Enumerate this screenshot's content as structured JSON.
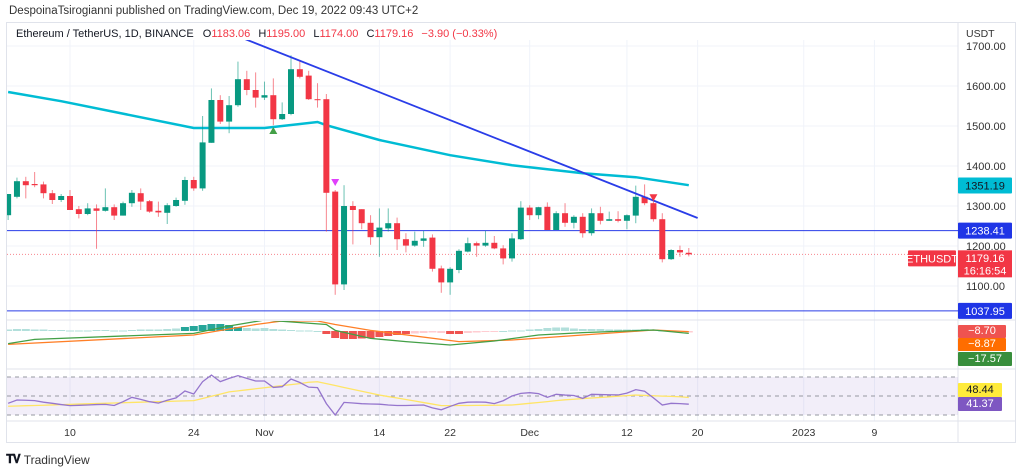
{
  "publisher_line": "DespoinaTsirogianni published on TradingView.com, Dec 19, 2022 09:43 UTC+2",
  "legend": {
    "symbol": "Ethereum / TetherUS, 1D, BINANCE",
    "o_label": "O",
    "o": "1183.06",
    "h_label": "H",
    "h": "1195.00",
    "l_label": "L",
    "l": "1174.00",
    "c_label": "C",
    "c": "1179.16",
    "change": "−3.90 (−0.33%)"
  },
  "footer": {
    "logo_mark": "TV",
    "logo_text": "TradingView"
  },
  "colors": {
    "up": "#089981",
    "down": "#f23645",
    "ma": "#00bcd4",
    "trendline": "#2a3de8",
    "hline": "#2a3de8",
    "macd": "#43a047",
    "signal": "#ff7f27",
    "rsi": "#9575cd",
    "rsi_ma": "#ffe566"
  },
  "chart_data": {
    "type": "candlestick",
    "currency": "USDT",
    "ylim": [
      1020,
      1760
    ],
    "y_ticks": [
      "1700.00",
      "1600.00",
      "1500.00",
      "1400.00",
      "1300.00",
      "1200.00",
      "1100.00"
    ],
    "x_ticks": [
      {
        "label": "10",
        "date": "2022-10-10"
      },
      {
        "label": "24",
        "date": "2022-10-24"
      },
      {
        "label": "Nov",
        "date": "2022-11-01"
      },
      {
        "label": "14",
        "date": "2022-11-14"
      },
      {
        "label": "22",
        "date": "2022-11-22"
      },
      {
        "label": "Dec",
        "date": "2022-12-01"
      },
      {
        "label": "12",
        "date": "2022-12-12"
      },
      {
        "label": "20",
        "date": "2022-12-20"
      },
      {
        "label": "2023",
        "date": "2023-01-01"
      },
      {
        "label": "9",
        "date": "2023-01-09"
      }
    ],
    "candles_columns": [
      "date",
      "open",
      "high",
      "low",
      "close"
    ],
    "candles": [
      [
        "2022-10-03",
        1277,
        1330,
        1265,
        1330
      ],
      [
        "2022-10-04",
        1323,
        1371,
        1319,
        1362
      ],
      [
        "2022-10-05",
        1362,
        1373,
        1319,
        1352
      ],
      [
        "2022-10-06",
        1355,
        1385,
        1347,
        1352
      ],
      [
        "2022-10-07",
        1354,
        1361,
        1319,
        1332
      ],
      [
        "2022-10-08",
        1332,
        1340,
        1305,
        1315
      ],
      [
        "2022-10-09",
        1315,
        1330,
        1310,
        1325
      ],
      [
        "2022-10-10",
        1325,
        1340,
        1290,
        1290
      ],
      [
        "2022-10-11",
        1292,
        1300,
        1269,
        1280
      ],
      [
        "2022-10-12",
        1280,
        1307,
        1277,
        1294
      ],
      [
        "2022-10-13",
        1294,
        1304,
        1193,
        1288
      ],
      [
        "2022-10-14",
        1288,
        1344,
        1286,
        1297
      ],
      [
        "2022-10-15",
        1297,
        1304,
        1265,
        1276
      ],
      [
        "2022-10-16",
        1276,
        1311,
        1276,
        1307
      ],
      [
        "2022-10-17",
        1307,
        1340,
        1298,
        1333
      ],
      [
        "2022-10-18",
        1332,
        1344,
        1290,
        1311
      ],
      [
        "2022-10-19",
        1312,
        1315,
        1283,
        1286
      ],
      [
        "2022-10-20",
        1288,
        1311,
        1273,
        1284
      ],
      [
        "2022-10-21",
        1283,
        1307,
        1255,
        1302
      ],
      [
        "2022-10-22",
        1300,
        1321,
        1298,
        1315
      ],
      [
        "2022-10-23",
        1313,
        1373,
        1303,
        1365
      ],
      [
        "2022-10-24",
        1365,
        1373,
        1338,
        1344
      ],
      [
        "2022-10-25",
        1344,
        1525,
        1338,
        1459
      ],
      [
        "2022-10-26",
        1458,
        1594,
        1458,
        1565
      ],
      [
        "2022-10-27",
        1565,
        1577,
        1505,
        1511
      ],
      [
        "2022-10-28",
        1511,
        1575,
        1482,
        1552
      ],
      [
        "2022-10-29",
        1552,
        1661,
        1548,
        1617
      ],
      [
        "2022-10-30",
        1617,
        1638,
        1577,
        1590
      ],
      [
        "2022-10-31",
        1590,
        1634,
        1546,
        1571
      ],
      [
        "2022-11-01",
        1571,
        1611,
        1565,
        1577
      ],
      [
        "2022-11-02",
        1577,
        1619,
        1502,
        1517
      ],
      [
        "2022-11-03",
        1517,
        1559,
        1515,
        1530
      ],
      [
        "2022-11-04",
        1530,
        1677,
        1527,
        1642
      ],
      [
        "2022-11-05",
        1642,
        1665,
        1619,
        1623
      ],
      [
        "2022-11-06",
        1626,
        1638,
        1565,
        1567
      ],
      [
        "2022-11-07",
        1567,
        1607,
        1546,
        1565
      ],
      [
        "2022-11-08",
        1567,
        1580,
        1236,
        1333
      ],
      [
        "2022-11-09",
        1336,
        1340,
        1078,
        1104
      ],
      [
        "2022-11-10",
        1104,
        1352,
        1090,
        1300
      ],
      [
        "2022-11-11",
        1300,
        1312,
        1204,
        1290
      ],
      [
        "2022-11-12",
        1292,
        1292,
        1242,
        1257
      ],
      [
        "2022-11-13",
        1258,
        1277,
        1203,
        1222
      ],
      [
        "2022-11-14",
        1222,
        1294,
        1173,
        1246
      ],
      [
        "2022-11-15",
        1244,
        1294,
        1236,
        1257
      ],
      [
        "2022-11-16",
        1257,
        1271,
        1190,
        1217
      ],
      [
        "2022-11-17",
        1217,
        1232,
        1184,
        1201
      ],
      [
        "2022-11-18",
        1201,
        1236,
        1198,
        1213
      ],
      [
        "2022-11-19",
        1213,
        1238,
        1198,
        1219
      ],
      [
        "2022-11-20",
        1221,
        1229,
        1136,
        1143
      ],
      [
        "2022-11-21",
        1144,
        1151,
        1083,
        1109
      ],
      [
        "2022-11-22",
        1109,
        1147,
        1078,
        1143
      ],
      [
        "2022-11-23",
        1140,
        1192,
        1132,
        1188
      ],
      [
        "2022-11-24",
        1186,
        1221,
        1184,
        1207
      ],
      [
        "2022-11-25",
        1207,
        1211,
        1173,
        1201
      ],
      [
        "2022-11-26",
        1201,
        1238,
        1198,
        1208
      ],
      [
        "2022-11-27",
        1208,
        1225,
        1192,
        1194
      ],
      [
        "2022-11-28",
        1194,
        1202,
        1154,
        1169
      ],
      [
        "2022-11-29",
        1169,
        1232,
        1161,
        1219
      ],
      [
        "2022-11-30",
        1217,
        1312,
        1215,
        1296
      ],
      [
        "2022-12-01",
        1296,
        1302,
        1265,
        1277
      ],
      [
        "2022-12-02",
        1277,
        1298,
        1267,
        1297
      ],
      [
        "2022-12-03",
        1298,
        1309,
        1240,
        1240
      ],
      [
        "2022-12-04",
        1240,
        1287,
        1240,
        1282
      ],
      [
        "2022-12-05",
        1282,
        1307,
        1248,
        1258
      ],
      [
        "2022-12-06",
        1258,
        1277,
        1244,
        1273
      ],
      [
        "2022-12-07",
        1273,
        1282,
        1221,
        1232
      ],
      [
        "2022-12-08",
        1232,
        1294,
        1226,
        1282
      ],
      [
        "2022-12-09",
        1282,
        1298,
        1254,
        1263
      ],
      [
        "2022-12-10",
        1263,
        1286,
        1263,
        1267
      ],
      [
        "2022-12-11",
        1267,
        1287,
        1259,
        1263
      ],
      [
        "2022-12-12",
        1263,
        1279,
        1242,
        1277
      ],
      [
        "2022-12-13",
        1276,
        1351,
        1257,
        1323
      ],
      [
        "2022-12-14",
        1323,
        1354,
        1302,
        1307
      ],
      [
        "2022-12-15",
        1307,
        1311,
        1261,
        1267
      ],
      [
        "2022-12-16",
        1267,
        1282,
        1159,
        1167
      ],
      [
        "2022-12-17",
        1167,
        1192,
        1165,
        1190
      ],
      [
        "2022-12-18",
        1190,
        1201,
        1173,
        1184
      ],
      [
        "2022-12-19",
        1183.06,
        1195,
        1174,
        1179.16
      ]
    ],
    "moving_average": [
      [
        "2022-10-03",
        1585
      ],
      [
        "2022-10-09",
        1562
      ],
      [
        "2022-10-24",
        1495
      ],
      [
        "2022-11-01",
        1495
      ],
      [
        "2022-11-07",
        1510
      ],
      [
        "2022-11-08",
        1502
      ],
      [
        "2022-11-14",
        1465
      ],
      [
        "2022-11-22",
        1427
      ],
      [
        "2022-11-29",
        1402
      ],
      [
        "2022-12-07",
        1382
      ],
      [
        "2022-12-13",
        1372
      ],
      [
        "2022-12-19",
        1352
      ]
    ],
    "trendline": [
      [
        "2022-10-24",
        1768
      ],
      [
        "2022-12-20",
        1270
      ]
    ],
    "horizontal_levels": [
      1238.41,
      1037.95
    ],
    "markers": [
      {
        "date": "2022-11-02",
        "price": 1490,
        "shape": "triangle-up",
        "color": "#43a047"
      },
      {
        "date": "2022-11-09",
        "price": 1360,
        "shape": "triangle-down",
        "color": "#e040fb"
      },
      {
        "date": "2022-12-15",
        "price": 1322,
        "shape": "triangle-down",
        "color": "#f23645"
      }
    ],
    "price_labels": {
      "ma": {
        "text": "1351.19",
        "bg": "#00bcd4",
        "fg": "#131722"
      },
      "level1": {
        "text": "1238.41",
        "bg": "#1f35e6",
        "fg": "#ffffff"
      },
      "level2": {
        "text": "1037.95",
        "bg": "#1f35e6",
        "fg": "#ffffff"
      },
      "symbol": {
        "text": "ETHUSDT",
        "bg": "#f23645",
        "fg": "#ffffff"
      },
      "last": {
        "text": "1179.16",
        "bg": "#f23645",
        "fg": "#ffffff"
      },
      "countdown": {
        "text": "16:16:54"
      }
    },
    "macd": {
      "labels": [
        {
          "text": "−8.70",
          "bg": "#ef5350",
          "fg": "#ffffff"
        },
        {
          "text": "−8.87",
          "bg": "#ff6d00",
          "fg": "#ffffff"
        },
        {
          "text": "−17.57",
          "bg": "#388e3c",
          "fg": "#ffffff"
        }
      ],
      "histogram": [
        3,
        4,
        4,
        3,
        3,
        2,
        2,
        1,
        1,
        1,
        2,
        2,
        1,
        1,
        2,
        3,
        3,
        3,
        4,
        5,
        8,
        10,
        12,
        14,
        14,
        12,
        8,
        6,
        5,
        6,
        4,
        3,
        2,
        1,
        1,
        0,
        -6,
        -14,
        -16,
        -16,
        -15,
        -14,
        -12,
        -10,
        -8,
        -6,
        -5,
        -4,
        -3,
        -4,
        -6,
        -6,
        -4,
        -3,
        -2,
        -1,
        0,
        1,
        1,
        3,
        4,
        6,
        7,
        7,
        5,
        4,
        4,
        4,
        3,
        3,
        3,
        3,
        4,
        3,
        1,
        -1,
        -2,
        -3
      ],
      "macd_line": [
        [
          "2022-10-03",
          -25.3
        ],
        [
          "2022-10-06",
          -16.7
        ],
        [
          "2022-10-24",
          -4.7
        ],
        [
          "2022-10-28",
          10
        ],
        [
          "2022-11-01",
          22
        ],
        [
          "2022-11-08",
          13
        ],
        [
          "2022-11-09",
          1.3
        ],
        [
          "2022-11-13",
          -14.7
        ],
        [
          "2022-11-17",
          -21.3
        ],
        [
          "2022-11-22",
          -28
        ],
        [
          "2022-11-27",
          -20
        ],
        [
          "2022-12-02",
          -8
        ],
        [
          "2022-12-07",
          -3.3
        ],
        [
          "2022-12-15",
          2
        ],
        [
          "2022-12-19",
          -4.7
        ]
      ],
      "signal_line": [
        [
          "2022-10-03",
          -26.7
        ],
        [
          "2022-10-24",
          -8
        ],
        [
          "2022-10-31",
          13
        ],
        [
          "2022-11-03",
          20
        ],
        [
          "2022-11-07",
          20
        ],
        [
          "2022-11-09",
          13
        ],
        [
          "2022-11-13",
          1.3
        ],
        [
          "2022-11-23",
          -21.3
        ],
        [
          "2022-11-29",
          -18
        ],
        [
          "2022-12-07",
          -8
        ],
        [
          "2022-12-15",
          2
        ],
        [
          "2022-12-19",
          -1.3
        ]
      ]
    },
    "rsi": {
      "levels": [
        70,
        50,
        30
      ],
      "labels": [
        {
          "text": "48.44",
          "bg": "#ffeb3b",
          "fg": "#131722"
        },
        {
          "text": "41.37",
          "bg": "#7e57c2",
          "fg": "#ffffff"
        }
      ],
      "rsi_values": [
        42.3,
        45.8,
        45.5,
        45.1,
        43.5,
        42.3,
        41,
        39.9,
        40.2,
        40.5,
        41,
        41.2,
        40,
        44,
        48.6,
        46.5,
        44,
        42.5,
        45.5,
        48,
        55.3,
        52.1,
        65.1,
        72.1,
        65.1,
        68.5,
        71.4,
        68.5,
        65.8,
        65.8,
        59,
        59.8,
        67.9,
        64.2,
        59.3,
        58.8,
        42,
        30,
        43.3,
        42.6,
        41.9,
        41.6,
        41.4,
        40.5,
        40,
        40,
        40.3,
        40.5,
        37.5,
        35.5,
        39,
        42.3,
        43.5,
        43.7,
        43.5,
        42,
        45,
        50,
        52.8,
        53.5,
        52.5,
        48.6,
        51.8,
        51,
        50.5,
        47.5,
        51.8,
        51.5,
        51.3,
        51.1,
        53,
        56.7,
        55,
        48,
        40.5,
        42.3,
        42,
        41.37
      ],
      "rsi_ma_values": [
        39.2,
        39.5,
        39.8,
        40.0,
        40.3,
        40.6,
        40.9,
        41.2,
        41.5,
        41.8,
        42.1,
        42.3,
        42.6,
        42.9,
        43.2,
        43.5,
        43.8,
        44.0,
        44.3,
        44.6,
        44.9,
        45.1,
        47.4,
        49.7,
        52,
        54.3,
        55.4,
        56.5,
        57.6,
        58.7,
        59.8,
        60.9,
        62,
        63,
        64.5,
        65,
        63,
        61,
        59,
        57,
        55,
        53,
        51,
        49.4,
        47.9,
        46.3,
        44.7,
        43.1,
        41.5,
        39.9,
        39.9,
        40,
        40,
        40.1,
        40.2,
        40.3,
        40.4,
        40.5,
        41.4,
        42.3,
        43.2,
        44.1,
        45.1,
        46,
        46.6,
        47.3,
        47.9,
        48.5,
        49.1,
        49.8,
        50.4,
        51,
        50.6,
        50.3,
        49.9,
        49.6,
        49.2,
        48.44
      ]
    }
  }
}
